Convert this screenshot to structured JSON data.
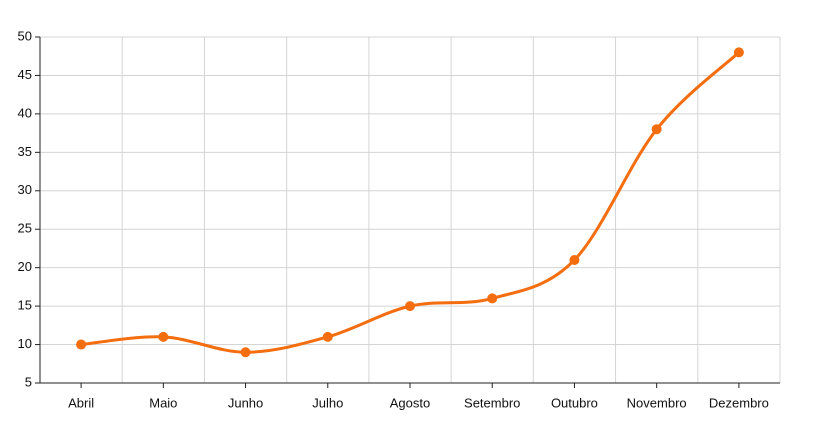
{
  "chart_data": {
    "type": "line",
    "categories": [
      "Abril",
      "Maio",
      "Junho",
      "Julho",
      "Agosto",
      "Setembro",
      "Outubro",
      "Novembro",
      "Dezembro"
    ],
    "values": [
      10,
      11,
      9,
      11,
      15,
      16,
      21,
      38,
      48
    ],
    "color": "#f46d0f",
    "ylim": [
      5,
      50
    ],
    "yticks": [
      5,
      10,
      15,
      20,
      25,
      30,
      35,
      40,
      45,
      50
    ],
    "grid": true
  }
}
